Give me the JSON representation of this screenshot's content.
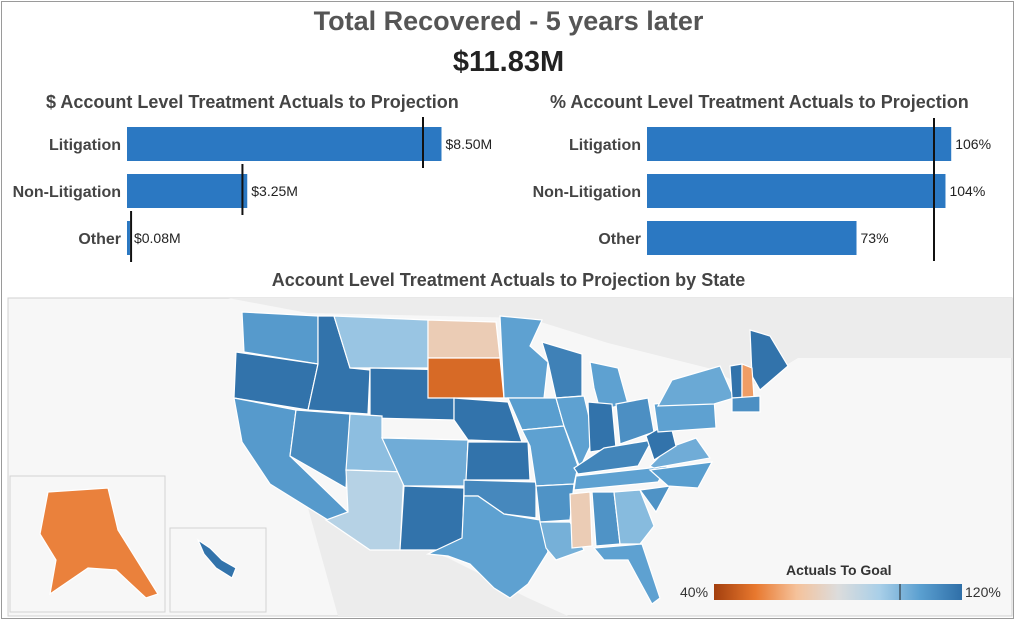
{
  "header": {
    "title": "Total Recovered - 5 years later",
    "total": "$11.83M"
  },
  "chart_data": [
    {
      "type": "bar",
      "orientation": "horizontal",
      "title": "$ Account Level Treatment Actuals to Projection",
      "categories": [
        "Litigation",
        "Non-Litigation",
        "Other"
      ],
      "values": [
        8.5,
        3.25,
        0.08
      ],
      "value_labels": [
        "$8.50M",
        "$3.25M",
        "$0.08M"
      ],
      "projection": [
        8.0,
        3.12,
        0.11
      ],
      "unit": "$M",
      "color": "#2b78c2"
    },
    {
      "type": "bar",
      "orientation": "horizontal",
      "title": "% Account Level Treatment Actuals to Projection",
      "categories": [
        "Litigation",
        "Non-Litigation",
        "Other"
      ],
      "values": [
        106,
        104,
        73
      ],
      "value_labels": [
        "106%",
        "104%",
        "73%"
      ],
      "reference_line": 100,
      "unit": "%",
      "color": "#2b78c2"
    },
    {
      "type": "heatmap",
      "subtype": "choropleth",
      "title": "Account Level Treatment Actuals to Projection by State",
      "legend": {
        "title": "Actuals To Goal",
        "min_label": "40%",
        "max_label": "120%",
        "min": 40,
        "max": 120,
        "midpoint": 100,
        "colors": [
          "#a33f0e",
          "#e8782e",
          "#f5c29b",
          "#dcdcdc",
          "#a9cfe8",
          "#5a9fd0",
          "#2f6fa8"
        ]
      },
      "levels": {
        "WA": 108,
        "OR": 119,
        "CA": 108,
        "NV": 112,
        "ID": 119,
        "MT": 96,
        "WY": 119,
        "UT": 98,
        "AZ": 90,
        "CO": 103,
        "NM": 119,
        "ND": 72,
        "SD": 50,
        "NE": 119,
        "KS": 119,
        "OK": 113,
        "TX": 106,
        "MN": 106,
        "IA": 107,
        "MO": 106,
        "AR": 110,
        "LA": 102,
        "WI": 115,
        "IL": 106,
        "MI": 106,
        "IN": 119,
        "OH": 111,
        "KY": 114,
        "TN": 106,
        "MS": 72,
        "AL": 110,
        "GA": 99,
        "FL": 106,
        "SC": 110,
        "NC": 107,
        "VA": 103,
        "WV": 119,
        "PA": 106,
        "NY": 104,
        "ME": 119,
        "VT": 119,
        "NH": 60,
        "MA": 111,
        "AK": 55,
        "HI": 119
      }
    }
  ]
}
